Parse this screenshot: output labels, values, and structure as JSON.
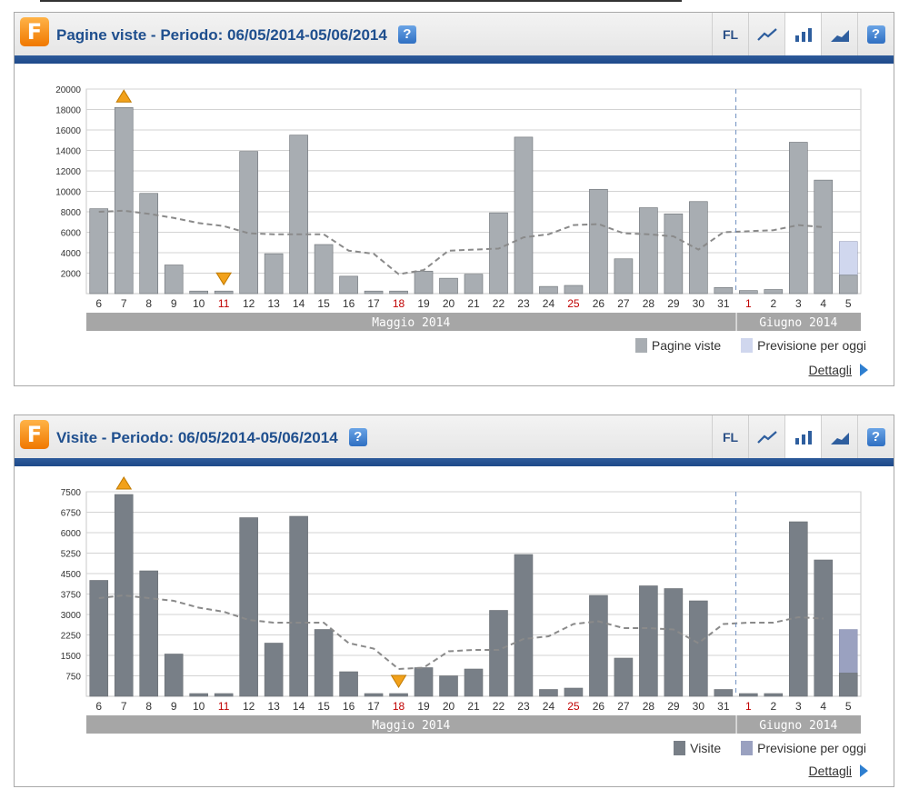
{
  "labels": {
    "days": [
      "6",
      "7",
      "8",
      "9",
      "10",
      "11",
      "12",
      "13",
      "14",
      "15",
      "16",
      "17",
      "18",
      "19",
      "20",
      "21",
      "22",
      "23",
      "24",
      "25",
      "26",
      "27",
      "28",
      "29",
      "30",
      "31",
      "1",
      "2",
      "3",
      "4",
      "5"
    ],
    "red_days": [
      "11",
      "18",
      "25",
      "1"
    ],
    "month_may": "Maggio 2014",
    "month_june": "Giugno 2014",
    "toolbar_fl": "FL",
    "help_glyph": "?",
    "logo_letter": "F",
    "details": "Dettagli",
    "forecast": "Previsione per oggi"
  },
  "colors": {
    "bar1": "#a8adb2",
    "bar2": "#787f87",
    "forecast1": "#d0d7ee",
    "forecast2": "#9aa1c0",
    "accent": "#1f4f8e"
  },
  "panels": [
    {
      "title": "Pagine viste - Periodo: 06/05/2014-05/06/2014",
      "legend_series": "Pagine viste"
    },
    {
      "title": "Visite - Periodo: 06/05/2014-05/06/2014",
      "legend_series": "Visite"
    }
  ],
  "chart_data": [
    {
      "type": "bar",
      "title": "Pagine viste - Periodo: 06/05/2014-05/06/2014",
      "categories": [
        "6",
        "7",
        "8",
        "9",
        "10",
        "11",
        "12",
        "13",
        "14",
        "15",
        "16",
        "17",
        "18",
        "19",
        "20",
        "21",
        "22",
        "23",
        "24",
        "25",
        "26",
        "27",
        "28",
        "29",
        "30",
        "31",
        "1",
        "2",
        "3",
        "4",
        "5"
      ],
      "yticks": [
        2000,
        4000,
        6000,
        8000,
        10000,
        12000,
        14000,
        16000,
        18000,
        20000
      ],
      "ylim": [
        0,
        20000
      ],
      "series": [
        {
          "name": "Pagine viste",
          "values": [
            8300,
            18200,
            9800,
            2800,
            250,
            250,
            13900,
            3900,
            15500,
            4800,
            1700,
            250,
            250,
            2200,
            1500,
            1900,
            7900,
            15300,
            700,
            800,
            10200,
            3400,
            8400,
            7800,
            9000,
            600,
            300,
            400,
            14800,
            11100,
            1800
          ]
        },
        {
          "name": "Previsione per oggi",
          "values": [
            null,
            null,
            null,
            null,
            null,
            null,
            null,
            null,
            null,
            null,
            null,
            null,
            null,
            null,
            null,
            null,
            null,
            null,
            null,
            null,
            null,
            null,
            null,
            null,
            null,
            null,
            null,
            null,
            null,
            null,
            5100
          ]
        }
      ],
      "trend": [
        8000,
        8100,
        7800,
        7400,
        6900,
        6600,
        5900,
        5800,
        5800,
        5800,
        4200,
        3900,
        1900,
        2300,
        4200,
        4300,
        4400,
        5500,
        5800,
        6700,
        6800,
        5900,
        5800,
        5600,
        4300,
        6000,
        6100,
        6200,
        6700,
        6500
      ],
      "max_marker_index": 1,
      "min_marker_index": 5,
      "divider_after_index": 25,
      "grid": true,
      "legend": "bottom-right"
    },
    {
      "type": "bar",
      "title": "Visite - Periodo: 06/05/2014-05/06/2014",
      "categories": [
        "6",
        "7",
        "8",
        "9",
        "10",
        "11",
        "12",
        "13",
        "14",
        "15",
        "16",
        "17",
        "18",
        "19",
        "20",
        "21",
        "22",
        "23",
        "24",
        "25",
        "26",
        "27",
        "28",
        "29",
        "30",
        "31",
        "1",
        "2",
        "3",
        "4",
        "5"
      ],
      "yticks": [
        750,
        1500,
        2250,
        3000,
        3750,
        4500,
        5250,
        6000,
        6750,
        7500
      ],
      "ylim": [
        0,
        7500
      ],
      "series": [
        {
          "name": "Visite",
          "values": [
            4250,
            7400,
            4600,
            1550,
            100,
            100,
            6550,
            1950,
            6600,
            2450,
            900,
            100,
            100,
            1050,
            750,
            1000,
            3150,
            5200,
            250,
            300,
            3700,
            1400,
            4050,
            3950,
            3500,
            250,
            100,
            100,
            6400,
            5000,
            850
          ]
        },
        {
          "name": "Previsione per oggi",
          "values": [
            null,
            null,
            null,
            null,
            null,
            null,
            null,
            null,
            null,
            null,
            null,
            null,
            null,
            null,
            null,
            null,
            null,
            null,
            null,
            null,
            null,
            null,
            null,
            null,
            null,
            null,
            null,
            null,
            null,
            null,
            2450
          ]
        }
      ],
      "trend": [
        3600,
        3700,
        3600,
        3500,
        3250,
        3100,
        2800,
        2700,
        2700,
        2700,
        1950,
        1750,
        1000,
        1050,
        1650,
        1700,
        1700,
        2100,
        2200,
        2650,
        2750,
        2500,
        2500,
        2450,
        1950,
        2650,
        2700,
        2700,
        2900,
        2850
      ],
      "max_marker_index": 1,
      "min_marker_index": 12,
      "divider_after_index": 25,
      "grid": true,
      "legend": "bottom-right"
    }
  ]
}
